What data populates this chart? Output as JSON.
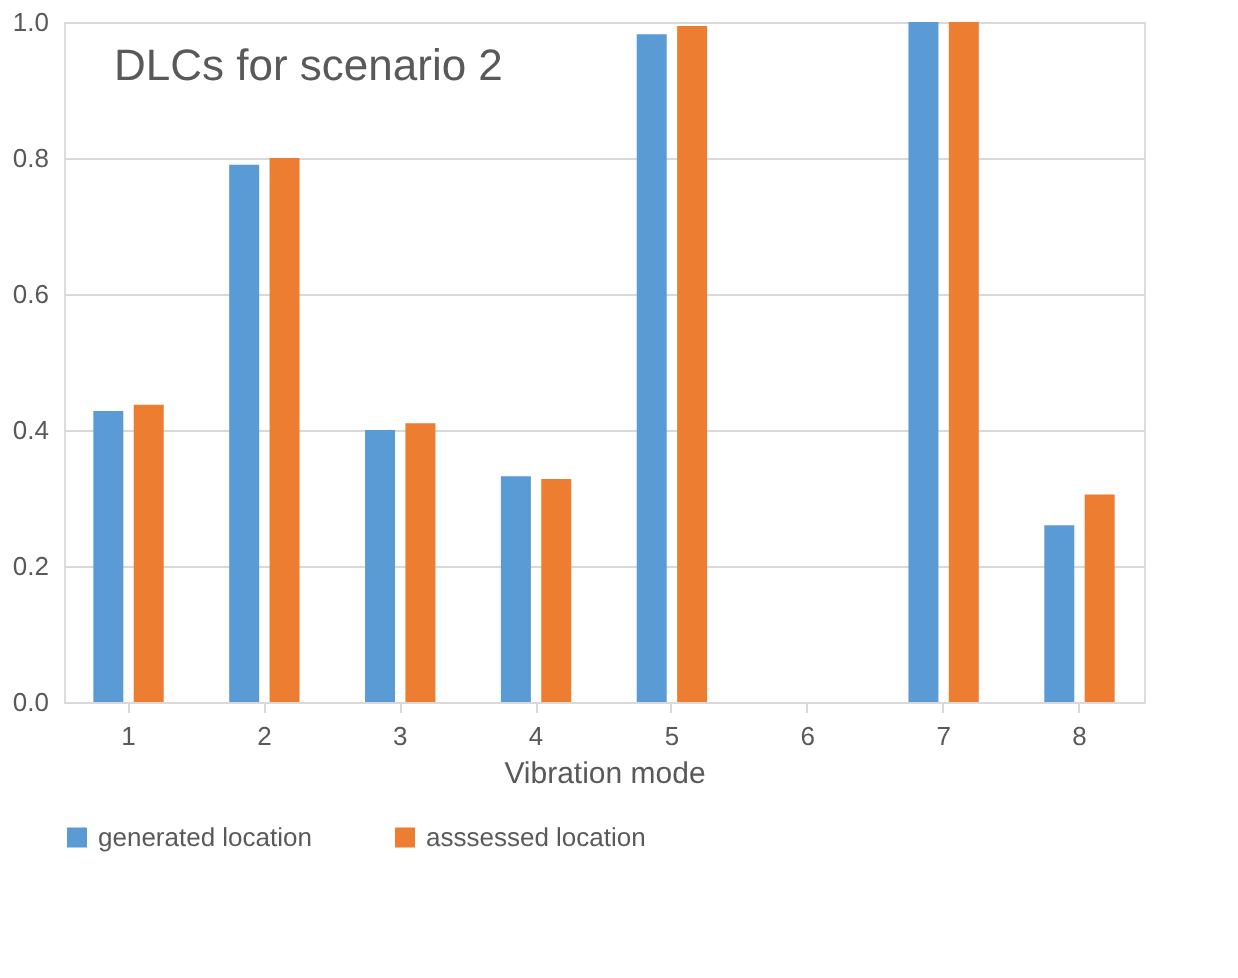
{
  "chart_data": {
    "type": "bar",
    "title": "DLCs for scenario 2",
    "xlabel": "Vibration mode",
    "categories": [
      "1",
      "2",
      "3",
      "4",
      "5",
      "6",
      "7",
      "8"
    ],
    "series": [
      {
        "name": "generated location",
        "color": "#5b9bd5",
        "values": [
          0.428,
          0.79,
          0.4,
          0.332,
          0.982,
          null,
          1.0,
          0.26
        ]
      },
      {
        "name": "asssessed location",
        "color": "#ed7d31",
        "values": [
          0.437,
          0.8,
          0.41,
          0.328,
          0.994,
          null,
          1.0,
          0.305
        ]
      }
    ],
    "ylim": [
      0,
      1.0
    ],
    "yticks": [
      {
        "value": 0,
        "label": "0.0"
      },
      {
        "value": 0.2,
        "label": "0.2"
      },
      {
        "value": 0.4,
        "label": "0.4"
      },
      {
        "value": 0.6,
        "label": "0.6"
      },
      {
        "value": 0.8,
        "label": "0.8"
      },
      {
        "value": 1.0,
        "label": "1.0"
      }
    ],
    "grid": "y",
    "legend": "bottom"
  }
}
